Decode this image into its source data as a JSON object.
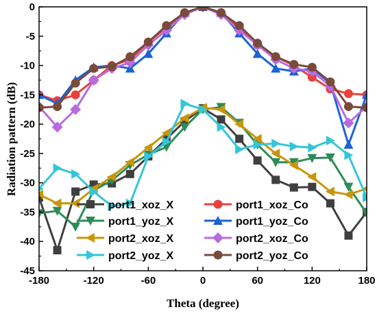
{
  "chart_data": {
    "type": "line",
    "xlabel": "Theta (degree)",
    "ylabel": "Radiation pattern (dB)",
    "xlim": [
      -180,
      180
    ],
    "ylim": [
      -45,
      0
    ],
    "x_ticks": [
      -180,
      -120,
      -60,
      0,
      60,
      120,
      180
    ],
    "y_ticks": [
      0,
      -5,
      -10,
      -15,
      -20,
      -25,
      -30,
      -35,
      -40,
      -45
    ],
    "x_tick_labels": [
      "-180",
      "-120",
      "-60",
      "0",
      "60",
      "120",
      "180"
    ],
    "y_tick_labels": [
      "0",
      "-5",
      "-10",
      "-15",
      "-20",
      "-25",
      "-30",
      "-35",
      "-40",
      "-45"
    ],
    "grid": false,
    "legend_position": "bottom-center",
    "series": [
      {
        "name": "port1_xoz_X",
        "color": "#3f3f3f",
        "marker": "square",
        "x": [
          -180,
          -160,
          -140,
          -120,
          -100,
          -80,
          -60,
          -40,
          -20,
          0,
          20,
          40,
          60,
          80,
          100,
          120,
          140,
          160,
          180
        ],
        "y": [
          -32.5,
          -41.5,
          -31.5,
          -30.3,
          -30.1,
          -28.5,
          -25.5,
          -22.5,
          -19.5,
          -17.3,
          -19.2,
          -22.5,
          -26.2,
          -29.5,
          -30.8,
          -30.7,
          -33.5,
          -39.0,
          -35.0
        ]
      },
      {
        "name": "port1_yoz_X",
        "color": "#2e8b57",
        "marker": "triangle-down",
        "x": [
          -180,
          -160,
          -140,
          -120,
          -100,
          -80,
          -60,
          -40,
          -20,
          0,
          20,
          40,
          60,
          80,
          100,
          120,
          140,
          160,
          180
        ],
        "y": [
          -35.2,
          -34.8,
          -37.5,
          -31.3,
          -29.6,
          -27.0,
          -25.2,
          -23.9,
          -20.5,
          -17.5,
          -17.1,
          -19.8,
          -23.5,
          -26.5,
          -26.5,
          -25.8,
          -25.7,
          -30.7,
          -35.2
        ]
      },
      {
        "name": "port2_xoz_X",
        "color": "#c8960a",
        "marker": "triangle-left",
        "x": [
          -180,
          -160,
          -140,
          -120,
          -100,
          -80,
          -60,
          -40,
          -20,
          0,
          20,
          40,
          60,
          80,
          100,
          120,
          140,
          160,
          180
        ],
        "y": [
          -32.0,
          -33.5,
          -33.5,
          -31.0,
          -29.0,
          -26.5,
          -24.0,
          -21.5,
          -19.0,
          -17.2,
          -17.5,
          -20.0,
          -22.5,
          -25.0,
          -27.0,
          -29.0,
          -31.5,
          -32.0,
          -31.0
        ]
      },
      {
        "name": "port2_yoz_X",
        "color": "#33c6d9",
        "marker": "triangle-right",
        "x": [
          -180,
          -160,
          -140,
          -120,
          -100,
          -80,
          -60,
          -40,
          -20,
          0,
          20,
          40,
          60,
          80,
          100,
          120,
          140,
          160,
          180
        ],
        "y": [
          -31.0,
          -27.5,
          -28.5,
          -31.5,
          -34.0,
          -33.5,
          -25.5,
          -23.0,
          -16.5,
          -17.5,
          -20.5,
          -24.3,
          -23.5,
          -23.3,
          -23.8,
          -24.0,
          -22.8,
          -25.3,
          -32.5
        ]
      },
      {
        "name": "port1_xoz_Co",
        "color": "#e8413c",
        "marker": "circle",
        "x": [
          -180,
          -160,
          -140,
          -120,
          -100,
          -80,
          -60,
          -40,
          -20,
          0,
          20,
          40,
          60,
          80,
          100,
          120,
          140,
          160,
          180
        ],
        "y": [
          -15.0,
          -16.0,
          -15.0,
          -12.5,
          -10.0,
          -9.0,
          -6.0,
          -3.5,
          -1.0,
          0.0,
          -1.0,
          -3.5,
          -6.5,
          -8.5,
          -10.0,
          -12.0,
          -14.0,
          -14.8,
          -15.0
        ]
      },
      {
        "name": "port1_yoz_Co",
        "color": "#1a62d6",
        "marker": "triangle-up",
        "x": [
          -180,
          -160,
          -140,
          -120,
          -100,
          -80,
          -60,
          -40,
          -20,
          0,
          20,
          40,
          60,
          80,
          100,
          120,
          140,
          160,
          180
        ],
        "y": [
          -15.0,
          -16.5,
          -12.5,
          -10.3,
          -10.0,
          -10.5,
          -8.0,
          -4.5,
          -1.0,
          0.0,
          -1.0,
          -4.5,
          -8.0,
          -10.5,
          -11.0,
          -10.5,
          -13.0,
          -23.5,
          -15.0
        ]
      },
      {
        "name": "port2_xoz_Co",
        "color": "#b86be0",
        "marker": "diamond",
        "x": [
          -180,
          -160,
          -140,
          -120,
          -100,
          -80,
          -60,
          -40,
          -20,
          0,
          20,
          40,
          60,
          80,
          100,
          120,
          140,
          160,
          180
        ],
        "y": [
          -17.0,
          -20.5,
          -17.5,
          -12.5,
          -10.5,
          -9.5,
          -6.5,
          -4.0,
          -1.3,
          0.0,
          -1.3,
          -4.0,
          -6.5,
          -9.0,
          -10.5,
          -11.0,
          -13.5,
          -19.8,
          -17.0
        ]
      },
      {
        "name": "port2_yoz_Co",
        "color": "#7a4a3a",
        "marker": "circle",
        "x": [
          -180,
          -160,
          -140,
          -120,
          -100,
          -80,
          -60,
          -40,
          -20,
          0,
          20,
          40,
          60,
          80,
          100,
          120,
          140,
          160,
          180
        ],
        "y": [
          -17.2,
          -17.0,
          -13.0,
          -10.5,
          -10.2,
          -8.5,
          -6.0,
          -3.2,
          -1.0,
          0.0,
          -1.0,
          -3.2,
          -6.2,
          -8.5,
          -9.8,
          -10.3,
          -12.8,
          -17.0,
          -17.2
        ]
      }
    ]
  }
}
